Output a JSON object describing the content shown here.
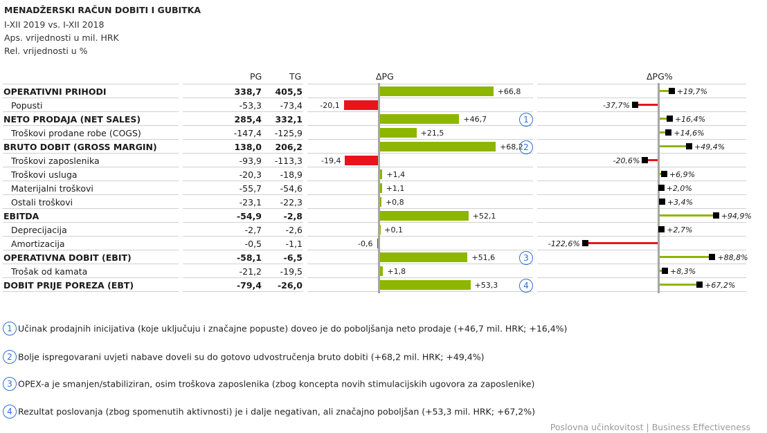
{
  "header": {
    "title": "MENADŽERSKI RAČUN DOBITI I GUBITKA",
    "period": "I-XII 2019 vs. I-XII 2018",
    "abs_note": "Aps. vrijednosti u mil. HRK",
    "rel_note": "Rel. vrijednosti u %"
  },
  "columns": {
    "pg": "PG",
    "tg": "TG",
    "delta": "ΔPG",
    "delta_pct": "ΔPG%"
  },
  "colors": {
    "positive": "#8db600",
    "negative": "#e8141b",
    "axis": "#a6a6a6",
    "marker": "#000000",
    "annotation": "#2e6fd6"
  },
  "chart_data": [
    {
      "type": "bar",
      "orientation": "horizontal",
      "title": "ΔPG",
      "categories": [
        "OPERATIVNI PRIHODI",
        "Popusti",
        "NETO PRODAJA (NET SALES)",
        "Troškovi prodane robe (COGS)",
        "BRUTO DOBIT (GROSS MARGIN)",
        "Troškovi zaposlenika",
        "Troškovi usluga",
        "Materijalni troškovi",
        "Ostali troškovi",
        "EBITDA",
        "Deprecijacija",
        "Amortizacija",
        "OPERATIVNA DOBIT (EBIT)",
        "Trošak od kamata",
        "DOBIT PRIJE POREZA (EBT)"
      ],
      "values": [
        66.8,
        -20.1,
        46.7,
        21.5,
        68.2,
        -19.4,
        1.4,
        1.1,
        0.8,
        52.1,
        0.1,
        -0.6,
        51.6,
        1.8,
        53.3
      ],
      "labels": [
        "+66,8",
        "-20,1",
        "+46,7",
        "+21,5",
        "+68,2",
        "-19,4",
        "+1,4",
        "+1,1",
        "+0,8",
        "+52,1",
        "+0,1",
        "-0,6",
        "+51,6",
        "+1,8",
        "+53,3"
      ]
    },
    {
      "type": "bar",
      "orientation": "horizontal",
      "style": "pin",
      "title": "ΔPG%",
      "categories": [
        "OPERATIVNI PRIHODI",
        "Popusti",
        "NETO PRODAJA (NET SALES)",
        "Troškovi prodane robe (COGS)",
        "BRUTO DOBIT (GROSS MARGIN)",
        "Troškovi zaposlenika",
        "Troškovi usluga",
        "Materijalni troškovi",
        "Ostali troškovi",
        "EBITDA",
        "Deprecijacija",
        "Amortizacija",
        "OPERATIVNA DOBIT (EBIT)",
        "Trošak od kamata",
        "DOBIT PRIJE POREZA (EBT)"
      ],
      "values": [
        19.7,
        -37.7,
        16.4,
        14.6,
        49.4,
        -20.6,
        6.9,
        2.0,
        3.4,
        94.9,
        2.7,
        -122.6,
        88.8,
        8.3,
        67.2
      ],
      "labels": [
        "+19,7%",
        "-37,7%",
        "+16,4%",
        "+14,6%",
        "+49,4%",
        "-20,6%",
        "+6,9%",
        "+2,0%",
        "+3,4%",
        "+94,9%",
        "+2,7%",
        "-122,6%",
        "+88,8%",
        "+8,3%",
        "+67,2%"
      ]
    }
  ],
  "rows": [
    {
      "label": "OPERATIVNI PRIHODI",
      "bold": true,
      "indent": false,
      "pg": "338,7",
      "tg": "405,5"
    },
    {
      "label": "Popusti",
      "bold": false,
      "indent": true,
      "pg": "-53,3",
      "tg": "-73,4"
    },
    {
      "label": "NETO PRODAJA (NET SALES)",
      "bold": true,
      "indent": false,
      "pg": "285,4",
      "tg": "332,1",
      "note": "1"
    },
    {
      "label": "Troškovi prodane robe (COGS)",
      "bold": false,
      "indent": true,
      "pg": "-147,4",
      "tg": "-125,9"
    },
    {
      "label": "BRUTO DOBIT (GROSS MARGIN)",
      "bold": true,
      "indent": false,
      "pg": "138,0",
      "tg": "206,2",
      "note": "2"
    },
    {
      "label": "Troškovi zaposlenika",
      "bold": false,
      "indent": true,
      "pg": "-93,9",
      "tg": "-113,3"
    },
    {
      "label": "Troškovi usluga",
      "bold": false,
      "indent": true,
      "pg": "-20,3",
      "tg": "-18,9"
    },
    {
      "label": "Materijalni troškovi",
      "bold": false,
      "indent": true,
      "pg": "-55,7",
      "tg": "-54,6"
    },
    {
      "label": "Ostali troškovi",
      "bold": false,
      "indent": true,
      "pg": "-23,1",
      "tg": "-22,3"
    },
    {
      "label": "EBITDA",
      "bold": true,
      "indent": false,
      "pg": "-54,9",
      "tg": "-2,8"
    },
    {
      "label": "Deprecijacija",
      "bold": false,
      "indent": true,
      "pg": "-2,7",
      "tg": "-2,6"
    },
    {
      "label": "Amortizacija",
      "bold": false,
      "indent": true,
      "pg": "-0,5",
      "tg": "-1,1"
    },
    {
      "label": "OPERATIVNA DOBIT (EBIT)",
      "bold": true,
      "indent": false,
      "pg": "-58,1",
      "tg": "-6,5",
      "note": "3"
    },
    {
      "label": "Trošak od kamata",
      "bold": false,
      "indent": true,
      "pg": "-21,2",
      "tg": "-19,5"
    },
    {
      "label": "DOBIT PRIJE POREZA (EBT)",
      "bold": true,
      "indent": false,
      "pg": "-79,4",
      "tg": "-26,0",
      "note": "4"
    }
  ],
  "notes": [
    {
      "num": "1",
      "text": "Učinak prodajnih inicijativa (koje uključuju i značajne popuste) doveo je do poboljšanja neto prodaje (+46,7 mil. HRK; +16,4%)"
    },
    {
      "num": "2",
      "text": "Bolje ispregovarani uvjeti nabave doveli su do gotovo udvostručenja bruto dobiti (+68,2 mil. HRK; +49,4%)"
    },
    {
      "num": "3",
      "text": "OPEX-a je smanjen/stabiliziran, osim troškova zaposlenika (zbog koncepta novih stimulacijskih ugovora za zaposlenike)"
    },
    {
      "num": "4",
      "text": "Rezultat poslovanja (zbog spomenutih aktivnosti) je i dalje negativan, ali značajno poboljšan (+53,3 mil. HRK; +67,2%)"
    }
  ],
  "footer": "Poslovna učinkovitost | Business Effectiveness"
}
